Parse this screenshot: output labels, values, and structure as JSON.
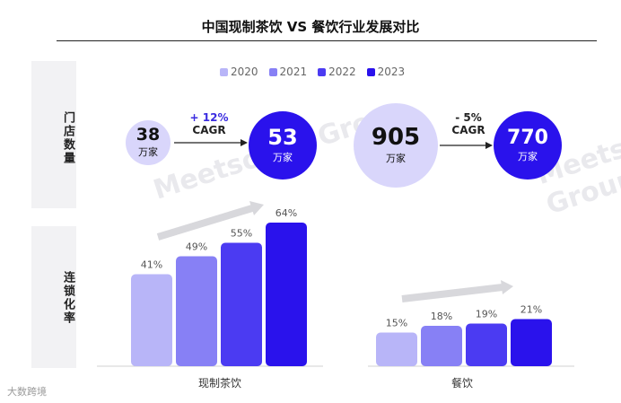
{
  "title": "中国现制茶饮 VS 餐饮行业发展对比",
  "side_labels": {
    "stores": "门店数量",
    "chain_rate": "连锁化率"
  },
  "legend": [
    "2020",
    "2021",
    "2022",
    "2023"
  ],
  "colors": {
    "y2020": "#b8b5f8",
    "y2021": "#8780f5",
    "y2022": "#4b3bf2",
    "y2023": "#2a12ec",
    "bubble_light": "#d9d6fb",
    "bubble_dark": "#2a12ec",
    "arrow": "#d8d8dc",
    "side_panel": "#f2f2f4"
  },
  "stores": {
    "tea": {
      "from": {
        "value": "38",
        "unit": "万家"
      },
      "to": {
        "value": "53",
        "unit": "万家"
      },
      "change": "+ 12%",
      "change_label": "CAGR"
    },
    "catering": {
      "from": {
        "value": "905",
        "unit": "万家"
      },
      "to": {
        "value": "770",
        "unit": "万家"
      },
      "change": "- 5%",
      "change_label": "CAGR"
    }
  },
  "chart_data": {
    "type": "bar",
    "categories": [
      "现制茶饮",
      "餐饮"
    ],
    "series": [
      {
        "name": "2020",
        "values": [
          41,
          15
        ]
      },
      {
        "name": "2021",
        "values": [
          49,
          18
        ]
      },
      {
        "name": "2022",
        "values": [
          55,
          19
        ]
      },
      {
        "name": "2023",
        "values": [
          64,
          21
        ]
      }
    ],
    "value_labels": [
      [
        "41%",
        "49%",
        "55%",
        "64%"
      ],
      [
        "15%",
        "18%",
        "19%",
        "21%"
      ]
    ],
    "unit": "%",
    "ylim": [
      0,
      64
    ]
  },
  "footer": "大数跨境",
  "watermark": "Meetsocial Group"
}
